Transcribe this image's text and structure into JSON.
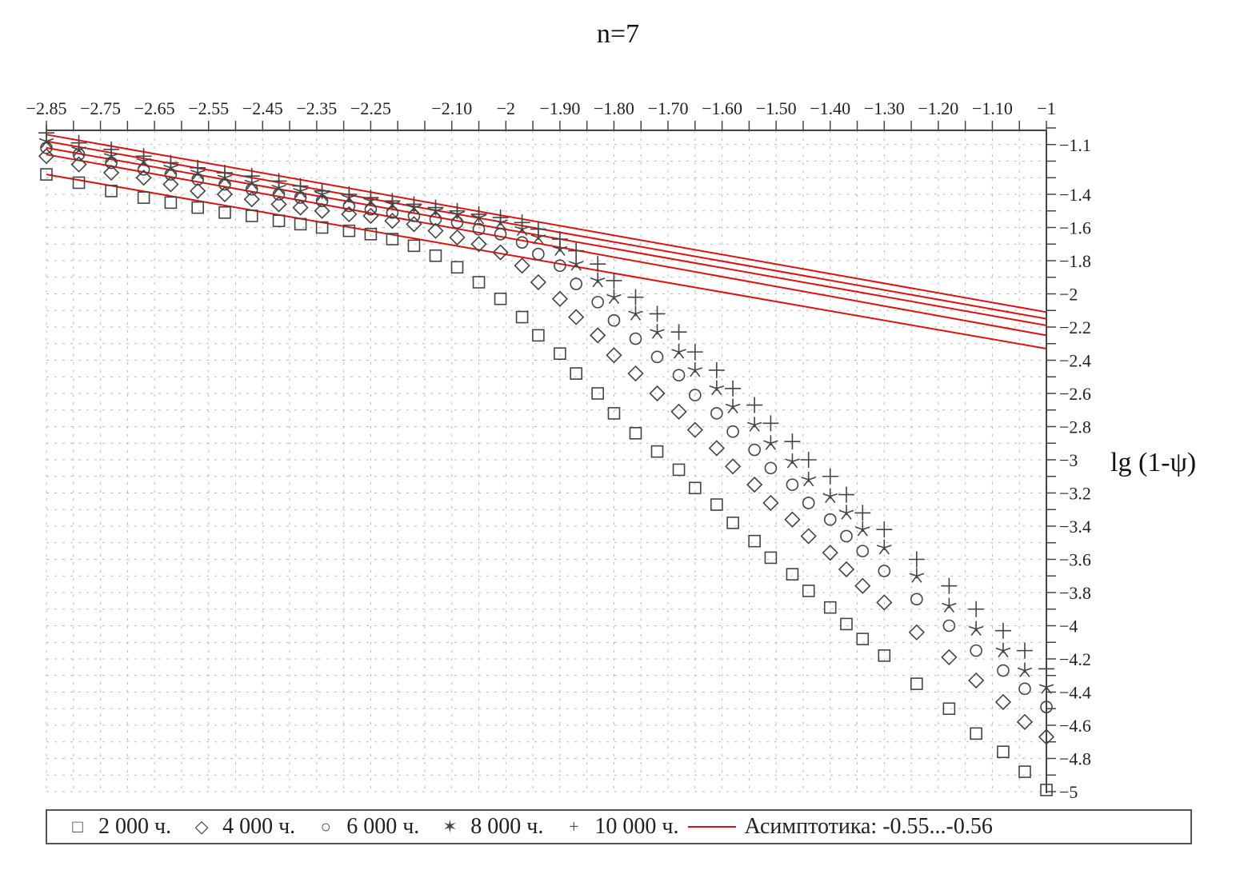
{
  "chart_data": {
    "type": "scatter",
    "title": "n=7",
    "xlabel": "",
    "ylabel": "lg (1-ψ)",
    "xlim": [
      -2.85,
      -1
    ],
    "ylim": [
      -5,
      -1.0
    ],
    "grid": true,
    "legend_position": "bottom",
    "x_tick_labels": [
      "−2.85",
      "−2.75",
      "−2.65",
      "−2.55",
      "−2.45",
      "−2.35",
      "−2.25",
      "−2.10",
      "−2",
      "−1.90",
      "−1.80",
      "−1.70",
      "−1.60",
      "−1.50",
      "−1.40",
      "−1.30",
      "−1.20",
      "−1.10",
      "−1"
    ],
    "x_tick_values": [
      -2.85,
      -2.75,
      -2.65,
      -2.55,
      -2.45,
      -2.35,
      -2.25,
      -2.1,
      -2,
      -1.9,
      -1.8,
      -1.7,
      -1.6,
      -1.5,
      -1.4,
      -1.3,
      -1.2,
      -1.1,
      -1
    ],
    "y_tick_labels": [
      "−1.1",
      "−1.4",
      "−1.6",
      "−1.8",
      "−2",
      "−2.2",
      "−2.4",
      "−2.6",
      "−2.8",
      "−3",
      "−3.2",
      "−3.4",
      "−3.6",
      "−3.8",
      "−4",
      "−4.2",
      "−4.4",
      "−4.6",
      "−4.8",
      "−5"
    ],
    "y_tick_values": [
      -1.1,
      -1.4,
      -1.6,
      -1.8,
      -2,
      -2.2,
      -2.4,
      -2.6,
      -2.8,
      -3,
      -3.2,
      -3.4,
      -3.6,
      -3.8,
      -4,
      -4.2,
      -4.4,
      -4.6,
      -4.8,
      -5
    ],
    "x": [
      -2.85,
      -2.79,
      -2.73,
      -2.67,
      -2.62,
      -2.57,
      -2.52,
      -2.47,
      -2.42,
      -2.38,
      -2.34,
      -2.29,
      -2.25,
      -2.21,
      -2.17,
      -2.13,
      -2.09,
      -2.05,
      -2.01,
      -1.97,
      -1.94,
      -1.9,
      -1.87,
      -1.83,
      -1.8,
      -1.76,
      -1.72,
      -1.68,
      -1.65,
      -1.61,
      -1.58,
      -1.54,
      -1.51,
      -1.47,
      -1.44,
      -1.4,
      -1.37,
      -1.34,
      -1.3,
      -1.24,
      -1.18,
      -1.13,
      -1.08,
      -1.04,
      -1.0
    ],
    "series": [
      {
        "name": "2 000 ч.",
        "marker": "square",
        "values": [
          -1.28,
          -1.33,
          -1.38,
          -1.42,
          -1.45,
          -1.48,
          -1.51,
          -1.53,
          -1.56,
          -1.58,
          -1.6,
          -1.62,
          -1.64,
          -1.67,
          -1.71,
          -1.77,
          -1.84,
          -1.93,
          -2.03,
          -2.14,
          -2.25,
          -2.36,
          -2.48,
          -2.6,
          -2.72,
          -2.84,
          -2.95,
          -3.06,
          -3.17,
          -3.27,
          -3.38,
          -3.49,
          -3.59,
          -3.69,
          -3.79,
          -3.89,
          -3.99,
          -4.08,
          -4.18,
          -4.35,
          -4.5,
          -4.65,
          -4.76,
          -4.88,
          -4.99
        ]
      },
      {
        "name": "4 000 ч.",
        "marker": "diamond",
        "values": [
          -1.17,
          -1.22,
          -1.27,
          -1.3,
          -1.34,
          -1.38,
          -1.4,
          -1.43,
          -1.46,
          -1.48,
          -1.5,
          -1.52,
          -1.53,
          -1.56,
          -1.58,
          -1.62,
          -1.66,
          -1.7,
          -1.75,
          -1.83,
          -1.93,
          -2.03,
          -2.14,
          -2.25,
          -2.37,
          -2.48,
          -2.6,
          -2.71,
          -2.82,
          -2.93,
          -3.04,
          -3.15,
          -3.26,
          -3.36,
          -3.46,
          -3.56,
          -3.66,
          -3.76,
          -3.86,
          -4.04,
          -4.19,
          -4.33,
          -4.46,
          -4.58,
          -4.67
        ]
      },
      {
        "name": "6 000 ч.",
        "marker": "circle",
        "values": [
          -1.12,
          -1.16,
          -1.21,
          -1.25,
          -1.28,
          -1.31,
          -1.34,
          -1.37,
          -1.4,
          -1.42,
          -1.44,
          -1.47,
          -1.49,
          -1.51,
          -1.53,
          -1.55,
          -1.57,
          -1.61,
          -1.64,
          -1.69,
          -1.76,
          -1.83,
          -1.94,
          -2.05,
          -2.16,
          -2.27,
          -2.38,
          -2.49,
          -2.61,
          -2.72,
          -2.83,
          -2.94,
          -3.05,
          -3.15,
          -3.26,
          -3.36,
          -3.46,
          -3.55,
          -3.67,
          -3.84,
          -4.0,
          -4.15,
          -4.27,
          -4.38,
          -4.49
        ]
      },
      {
        "name": "8 000 ч.",
        "marker": "star",
        "values": [
          -1.08,
          -1.13,
          -1.17,
          -1.2,
          -1.24,
          -1.27,
          -1.3,
          -1.33,
          -1.36,
          -1.38,
          -1.4,
          -1.42,
          -1.44,
          -1.46,
          -1.48,
          -1.5,
          -1.52,
          -1.54,
          -1.57,
          -1.61,
          -1.66,
          -1.73,
          -1.82,
          -1.92,
          -2.02,
          -2.12,
          -2.23,
          -2.35,
          -2.46,
          -2.57,
          -2.68,
          -2.79,
          -2.9,
          -3.01,
          -3.12,
          -3.22,
          -3.32,
          -3.42,
          -3.53,
          -3.7,
          -3.88,
          -4.02,
          -4.15,
          -4.27,
          -4.37
        ]
      },
      {
        "name": "10 000 ч.",
        "marker": "plus",
        "values": [
          -1.03,
          -1.09,
          -1.13,
          -1.17,
          -1.21,
          -1.24,
          -1.27,
          -1.29,
          -1.32,
          -1.35,
          -1.38,
          -1.4,
          -1.42,
          -1.44,
          -1.46,
          -1.48,
          -1.5,
          -1.52,
          -1.54,
          -1.57,
          -1.61,
          -1.67,
          -1.74,
          -1.82,
          -1.92,
          -2.02,
          -2.12,
          -2.23,
          -2.35,
          -2.46,
          -2.57,
          -2.67,
          -2.78,
          -2.89,
          -3.0,
          -3.1,
          -3.21,
          -3.32,
          -3.42,
          -3.6,
          -3.76,
          -3.9,
          -4.03,
          -4.15,
          -4.26
        ]
      }
    ],
    "asymptotes": {
      "name": "Асимптотика: -0.55...-0.56",
      "color": "#e01010",
      "lines": [
        {
          "x": [
            -2.85,
            -1
          ],
          "y": [
            -1.04,
            -2.11
          ]
        },
        {
          "x": [
            -2.85,
            -1
          ],
          "y": [
            -1.08,
            -2.15
          ]
        },
        {
          "x": [
            -2.85,
            -1
          ],
          "y": [
            -1.12,
            -2.19
          ]
        },
        {
          "x": [
            -2.85,
            -1
          ],
          "y": [
            -1.16,
            -2.25
          ]
        },
        {
          "x": [
            -2.85,
            -1
          ],
          "y": [
            -1.28,
            -2.33
          ]
        }
      ]
    }
  }
}
